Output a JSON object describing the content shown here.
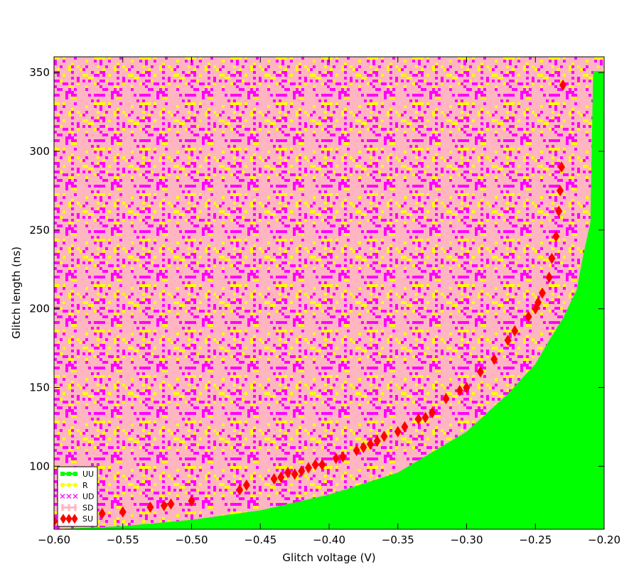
{
  "chart_data": {
    "type": "scatter",
    "title": "",
    "xlabel": "Glitch voltage (V)",
    "ylabel": "Glitch length (ns)",
    "xlim": [
      -0.6,
      -0.2
    ],
    "ylim": [
      60,
      360
    ],
    "xticks": [
      -0.6,
      -0.55,
      -0.5,
      -0.45,
      -0.4,
      -0.35,
      -0.3,
      -0.25,
      -0.2
    ],
    "xtick_labels": [
      "−0.60",
      "−0.55",
      "−0.50",
      "−0.45",
      "−0.40",
      "−0.35",
      "−0.30",
      "−0.25",
      "−0.20"
    ],
    "yticks": [
      100,
      150,
      200,
      250,
      300,
      350
    ],
    "ytick_labels": [
      "100",
      "150",
      "200",
      "250",
      "300",
      "350"
    ],
    "grid": false,
    "legend_position": "lower-left",
    "boundary_curve": {
      "x": [
        -0.6,
        -0.55,
        -0.5,
        -0.45,
        -0.4,
        -0.35,
        -0.3,
        -0.27,
        -0.25,
        -0.24,
        -0.23,
        -0.22,
        -0.215,
        -0.21
      ],
      "y": [
        60,
        62,
        66,
        72,
        82,
        96,
        122,
        146,
        165,
        180,
        194,
        212,
        235,
        255
      ]
    },
    "series": [
      {
        "name": "UU",
        "color": "#00ff00",
        "marker": "square",
        "region": "below boundary curve (lower-right)"
      },
      {
        "name": "R",
        "color": "#ffff00",
        "marker": "circle",
        "region": "scattered throughout upper region"
      },
      {
        "name": "UD",
        "color": "#ff00ff",
        "marker": "x",
        "region": "scattered throughout upper region"
      },
      {
        "name": "SD",
        "color": "#ffb6c1",
        "marker": "plus",
        "region": "scattered throughout upper region, dense near boundary"
      },
      {
        "name": "SU",
        "color": "#ff0000",
        "marker": "diamond",
        "x": [
          -0.6,
          -0.565,
          -0.55,
          -0.53,
          -0.52,
          -0.515,
          -0.5,
          -0.465,
          -0.46,
          -0.44,
          -0.435,
          -0.43,
          -0.425,
          -0.42,
          -0.415,
          -0.41,
          -0.405,
          -0.395,
          -0.39,
          -0.38,
          -0.375,
          -0.37,
          -0.365,
          -0.36,
          -0.35,
          -0.345,
          -0.335,
          -0.33,
          -0.325,
          -0.315,
          -0.305,
          -0.3,
          -0.29,
          -0.28,
          -0.27,
          -0.265,
          -0.255,
          -0.25,
          -0.248,
          -0.245,
          -0.24,
          -0.238,
          -0.235,
          -0.233,
          -0.232,
          -0.231,
          -0.23
        ],
        "y": [
          65,
          70,
          71,
          74,
          75,
          76,
          78,
          85,
          88,
          92,
          93,
          96,
          95,
          97,
          99,
          101,
          101,
          105,
          106,
          110,
          112,
          114,
          116,
          119,
          122,
          125,
          130,
          131,
          134,
          143,
          148,
          150,
          160,
          168,
          180,
          186,
          195,
          200,
          204,
          210,
          220,
          232,
          246,
          262,
          275,
          290,
          342
        ]
      }
    ]
  }
}
